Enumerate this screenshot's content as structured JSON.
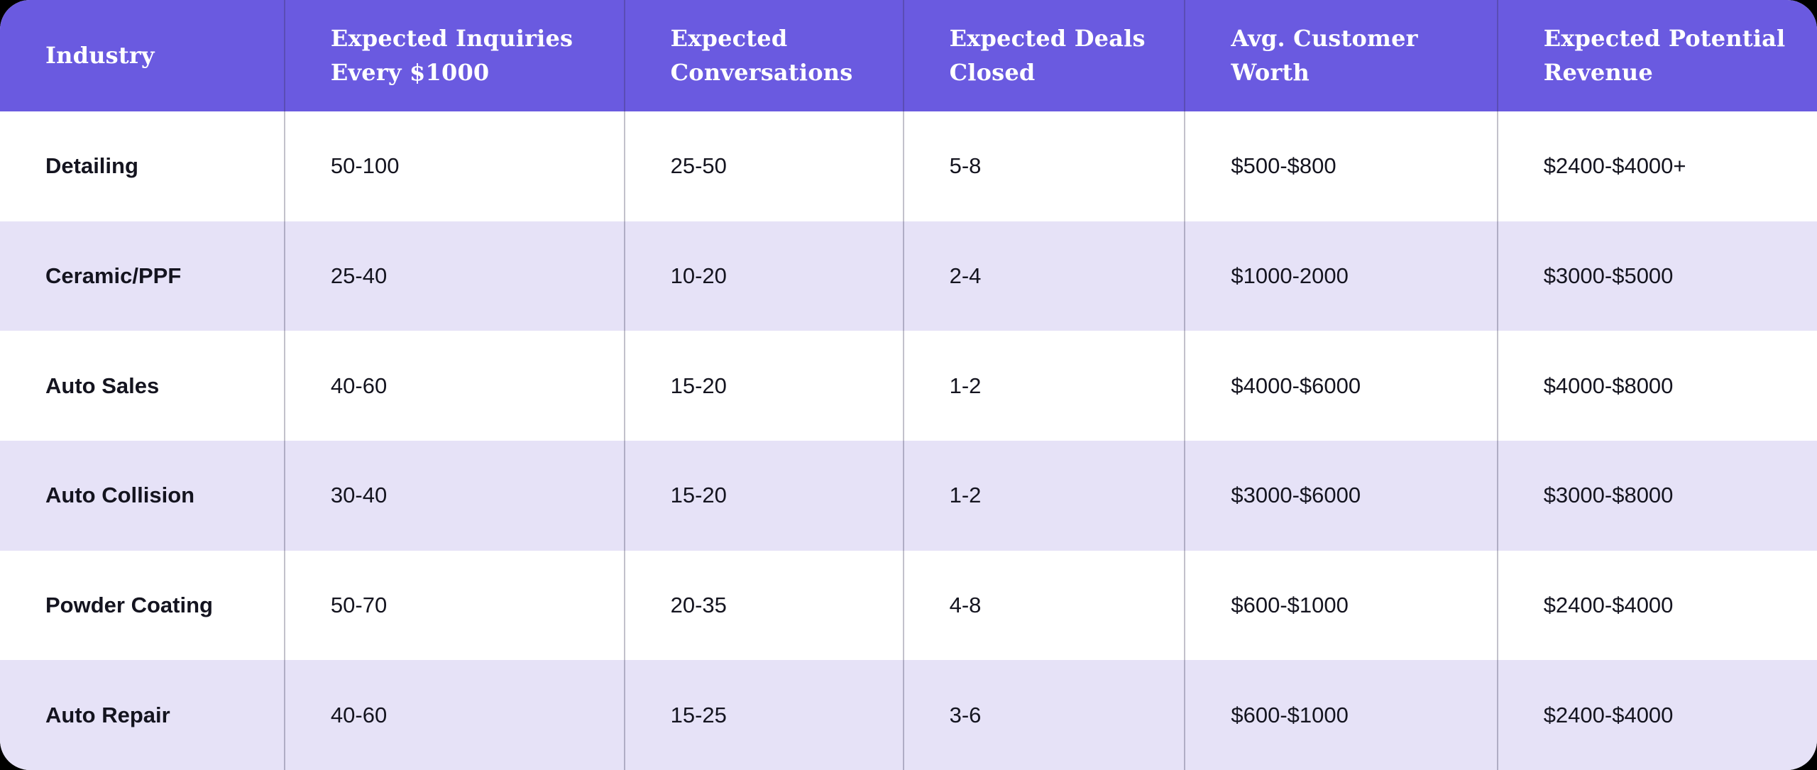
{
  "colors": {
    "page_bg": "#000000",
    "header_bg": "#6A5AE0",
    "header_text": "#FFFFFF",
    "row_even_bg": "#FFFFFF",
    "row_odd_bg": "#E6E2F7",
    "body_text": "#14141F",
    "divider": "rgba(52,50,82,0.30)"
  },
  "chart_data": {
    "type": "table",
    "title": "",
    "columns": [
      "Industry",
      "Expected Inquiries Every $1000",
      "Expected Conversations",
      "Expected Deals Closed",
      "Avg. Customer Worth",
      "Expected Potential Revenue"
    ],
    "rows": [
      [
        "Detailing",
        "50-100",
        "25-50",
        "5-8",
        "$500-$800",
        "$2400-$4000+"
      ],
      [
        "Ceramic/PPF",
        "25-40",
        "10-20",
        "2-4",
        "$1000-2000",
        "$3000-$5000"
      ],
      [
        "Auto Sales",
        "40-60",
        "15-20",
        "1-2",
        "$4000-$6000",
        "$4000-$8000"
      ],
      [
        "Auto Collision",
        "30-40",
        "15-20",
        "1-2",
        "$3000-$6000",
        "$3000-$8000"
      ],
      [
        "Powder Coating",
        "50-70",
        "20-35",
        "4-8",
        "$600-$1000",
        "$2400-$4000"
      ],
      [
        "Auto Repair",
        "40-60",
        "15-25",
        "3-6",
        "$600-$1000",
        "$2400-$4000"
      ]
    ],
    "layout": {
      "header_row": true,
      "alternating_row_shading": true,
      "rounded_corners": true
    }
  }
}
